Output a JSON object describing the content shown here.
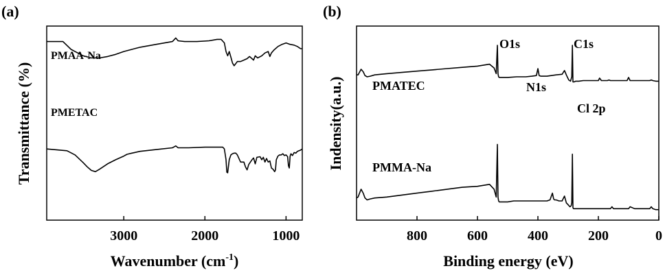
{
  "chart_data": [
    {
      "type": "line",
      "panel_label": "(a)",
      "xlabel": "Wavenumber (cm",
      "xlabel_sup": "-1",
      "xlabel_end": ")",
      "ylabel": "Transmittance (%)",
      "xlim": [
        3950,
        800
      ],
      "x_reversed": true,
      "xticks": [
        3000,
        2000,
        1000
      ],
      "xtick_labels": [
        "3000",
        "2000",
        "1000"
      ],
      "y_ticks_shown": false,
      "series": [
        {
          "name": "PMAA-Na",
          "x": [
            3950,
            3750,
            3650,
            3500,
            3400,
            3300,
            3200,
            3100,
            3000,
            2900,
            2800,
            2600,
            2400,
            2360,
            2330,
            2250,
            2100,
            1950,
            1850,
            1800,
            1760,
            1740,
            1720,
            1700,
            1680,
            1660,
            1640,
            1620,
            1600,
            1560,
            1520,
            1480,
            1450,
            1420,
            1400,
            1380,
            1350,
            1300,
            1260,
            1220,
            1200,
            1180,
            1150,
            1100,
            1050,
            1000,
            950,
            900,
            860,
            820,
            800
          ],
          "y": [
            0.86,
            0.86,
            0.75,
            0.66,
            0.63,
            0.63,
            0.65,
            0.68,
            0.72,
            0.75,
            0.78,
            0.82,
            0.86,
            0.91,
            0.87,
            0.86,
            0.86,
            0.87,
            0.89,
            0.89,
            0.84,
            0.72,
            0.66,
            0.72,
            0.64,
            0.56,
            0.52,
            0.55,
            0.58,
            0.58,
            0.6,
            0.62,
            0.65,
            0.62,
            0.6,
            0.66,
            0.63,
            0.66,
            0.7,
            0.72,
            0.65,
            0.7,
            0.74,
            0.79,
            0.82,
            0.84,
            0.82,
            0.81,
            0.79,
            0.76,
            0.76
          ]
        },
        {
          "name": "PMETAC",
          "x": [
            3950,
            3700,
            3600,
            3500,
            3450,
            3400,
            3350,
            3300,
            3200,
            3100,
            3000,
            2960,
            2900,
            2800,
            2600,
            2400,
            2360,
            2330,
            2200,
            2000,
            1850,
            1780,
            1760,
            1740,
            1730,
            1720,
            1700,
            1680,
            1660,
            1640,
            1620,
            1600,
            1560,
            1520,
            1500,
            1480,
            1460,
            1420,
            1400,
            1380,
            1360,
            1320,
            1300,
            1280,
            1260,
            1240,
            1220,
            1200,
            1180,
            1160,
            1140,
            1130,
            1120,
            1100,
            1080,
            1060,
            1040,
            1020,
            1000,
            980,
            970,
            960,
            950,
            940,
            920,
            900,
            880,
            860,
            840,
            820,
            800
          ],
          "y": [
            0.4,
            0.37,
            0.3,
            0.17,
            0.1,
            0.04,
            0.02,
            0.06,
            0.15,
            0.22,
            0.28,
            0.31,
            0.33,
            0.36,
            0.39,
            0.42,
            0.45,
            0.42,
            0.42,
            0.43,
            0.43,
            0.43,
            0.4,
            0.22,
            0.01,
            0.0,
            0.22,
            0.3,
            0.32,
            0.33,
            0.33,
            0.3,
            0.18,
            0.18,
            0.1,
            0.05,
            0.14,
            0.22,
            0.25,
            0.15,
            0.26,
            0.27,
            0.22,
            0.26,
            0.18,
            0.24,
            0.18,
            0.2,
            0.08,
            0.06,
            0.02,
            0.05,
            0.22,
            0.28,
            0.3,
            0.3,
            0.32,
            0.29,
            0.3,
            0.27,
            0.12,
            0.08,
            0.28,
            0.32,
            0.29,
            0.34,
            0.33,
            0.36,
            0.37,
            0.38,
            0.4
          ]
        }
      ]
    },
    {
      "type": "line",
      "panel_label": "(b)",
      "xlabel": "Binding energy (eV)",
      "ylabel": "Indensity(a.u.)",
      "xlim": [
        1000,
        0
      ],
      "x_reversed": true,
      "xticks": [
        800,
        600,
        400,
        200,
        0
      ],
      "xtick_labels": [
        "800",
        "600",
        "400",
        "200",
        "0"
      ],
      "y_ticks_shown": false,
      "peak_labels": [
        "O1s",
        "C1s",
        "N1s",
        "Cl 2p"
      ],
      "series": [
        {
          "name": "PMATEC",
          "x": [
            1000,
            995,
            985,
            978,
            972,
            965,
            955,
            940,
            900,
            850,
            800,
            750,
            700,
            650,
            600,
            560,
            545,
            538,
            534,
            532,
            530,
            528,
            525,
            515,
            500,
            470,
            440,
            420,
            405,
            400,
            396,
            390,
            370,
            340,
            320,
            312,
            305,
            298,
            292,
            288,
            286,
            284,
            282,
            280,
            275,
            265,
            250,
            230,
            210,
            200,
            196,
            190,
            170,
            165,
            160,
            150,
            140,
            120,
            105,
            100,
            95,
            80,
            60,
            40,
            30,
            25,
            20,
            10,
            0
          ],
          "y": [
            0.53,
            0.53,
            0.62,
            0.58,
            0.52,
            0.5,
            0.51,
            0.53,
            0.55,
            0.57,
            0.59,
            0.61,
            0.63,
            0.65,
            0.67,
            0.7,
            0.64,
            0.55,
            1.0,
            0.55,
            0.5,
            0.49,
            0.49,
            0.49,
            0.49,
            0.5,
            0.5,
            0.51,
            0.52,
            0.63,
            0.52,
            0.51,
            0.51,
            0.53,
            0.54,
            0.6,
            0.52,
            0.45,
            0.43,
            0.5,
            1.0,
            0.42,
            0.42,
            0.42,
            0.43,
            0.43,
            0.44,
            0.44,
            0.44,
            0.44,
            0.48,
            0.44,
            0.44,
            0.45,
            0.44,
            0.44,
            0.44,
            0.44,
            0.44,
            0.49,
            0.44,
            0.44,
            0.44,
            0.44,
            0.44,
            0.45,
            0.44,
            0.43,
            0.43
          ]
        },
        {
          "name": "PMMA-Na",
          "x": [
            1000,
            995,
            985,
            978,
            972,
            965,
            955,
            940,
            900,
            850,
            800,
            750,
            700,
            650,
            600,
            560,
            545,
            538,
            534,
            532,
            530,
            528,
            525,
            515,
            500,
            480,
            460,
            450,
            440,
            430,
            410,
            390,
            370,
            360,
            352,
            348,
            345,
            340,
            330,
            320,
            312,
            306,
            300,
            294,
            290,
            288,
            286,
            284,
            282,
            280,
            270,
            250,
            200,
            160,
            155,
            150,
            120,
            100,
            95,
            80,
            60,
            40,
            30,
            25,
            20,
            10,
            0
          ],
          "y": [
            0.15,
            0.16,
            0.24,
            0.2,
            0.15,
            0.13,
            0.14,
            0.15,
            0.16,
            0.18,
            0.2,
            0.22,
            0.24,
            0.26,
            0.27,
            0.29,
            0.24,
            0.16,
            0.7,
            0.16,
            0.12,
            0.11,
            0.11,
            0.11,
            0.11,
            0.12,
            0.12,
            0.12,
            0.12,
            0.12,
            0.12,
            0.12,
            0.12,
            0.13,
            0.2,
            0.14,
            0.13,
            0.13,
            0.12,
            0.12,
            0.17,
            0.1,
            0.08,
            0.06,
            0.07,
            0.1,
            0.6,
            0.05,
            0.04,
            0.04,
            0.04,
            0.04,
            0.04,
            0.04,
            0.06,
            0.04,
            0.04,
            0.04,
            0.06,
            0.04,
            0.04,
            0.04,
            0.04,
            0.06,
            0.04,
            0.03,
            0.03
          ]
        }
      ]
    }
  ]
}
